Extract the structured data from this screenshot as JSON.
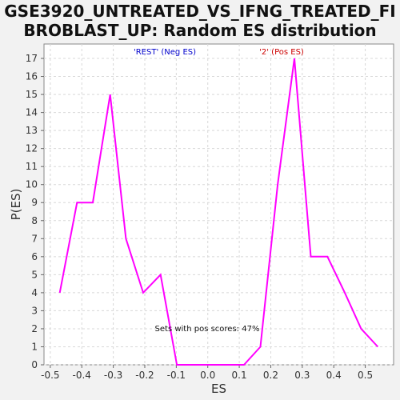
{
  "title_line1": "GSE3920_UNTREATED_VS_IFNG_TREATED_FI",
  "title_line2": "BROBLAST_UP: Random ES distribution",
  "colors": {
    "line": "#ff00ff",
    "neg_label": "#0000cc",
    "pos_label": "#cc0000",
    "grid": "#d8d8d8"
  },
  "chart_data": {
    "type": "line",
    "title": "GSE3920_UNTREATED_VS_IFNG_TREATED_FIBROBLAST_UP: Random ES distribution",
    "xlabel": "ES",
    "ylabel": "P(ES)",
    "xlim": [
      -0.52,
      0.59
    ],
    "ylim": [
      0,
      17.8
    ],
    "x_ticks": [
      -0.5,
      -0.4,
      -0.3,
      -0.2,
      -0.1,
      0.0,
      0.1,
      0.2,
      0.3,
      0.4,
      0.5
    ],
    "x_tick_labels": [
      "-0.5",
      "-0.4",
      "-0.3",
      "-0.2",
      "-0.1",
      "0.0",
      "0.1",
      "0.2",
      "0.3",
      "0.4",
      "0.5"
    ],
    "y_ticks": [
      0,
      1,
      2,
      3,
      4,
      5,
      6,
      7,
      8,
      9,
      10,
      11,
      12,
      13,
      14,
      15,
      16,
      17
    ],
    "grid": true,
    "series": [
      {
        "x": [
          -0.47,
          -0.415,
          -0.365,
          -0.31,
          -0.26,
          -0.205,
          -0.15,
          -0.098,
          -0.045,
          0.005,
          0.06,
          0.115,
          0.167,
          0.222,
          0.275,
          0.327,
          0.38,
          0.435,
          0.487,
          0.54
        ],
        "y": [
          4,
          9,
          9,
          15,
          7,
          4,
          5,
          0,
          0,
          0,
          0,
          0,
          1,
          10,
          17,
          6,
          6,
          4,
          2,
          1
        ]
      }
    ],
    "annotations": {
      "neg": "'REST' (Neg ES)",
      "pos": "'2' (Pos ES)",
      "pos_scores": "Sets with pos scores: 47%"
    }
  }
}
